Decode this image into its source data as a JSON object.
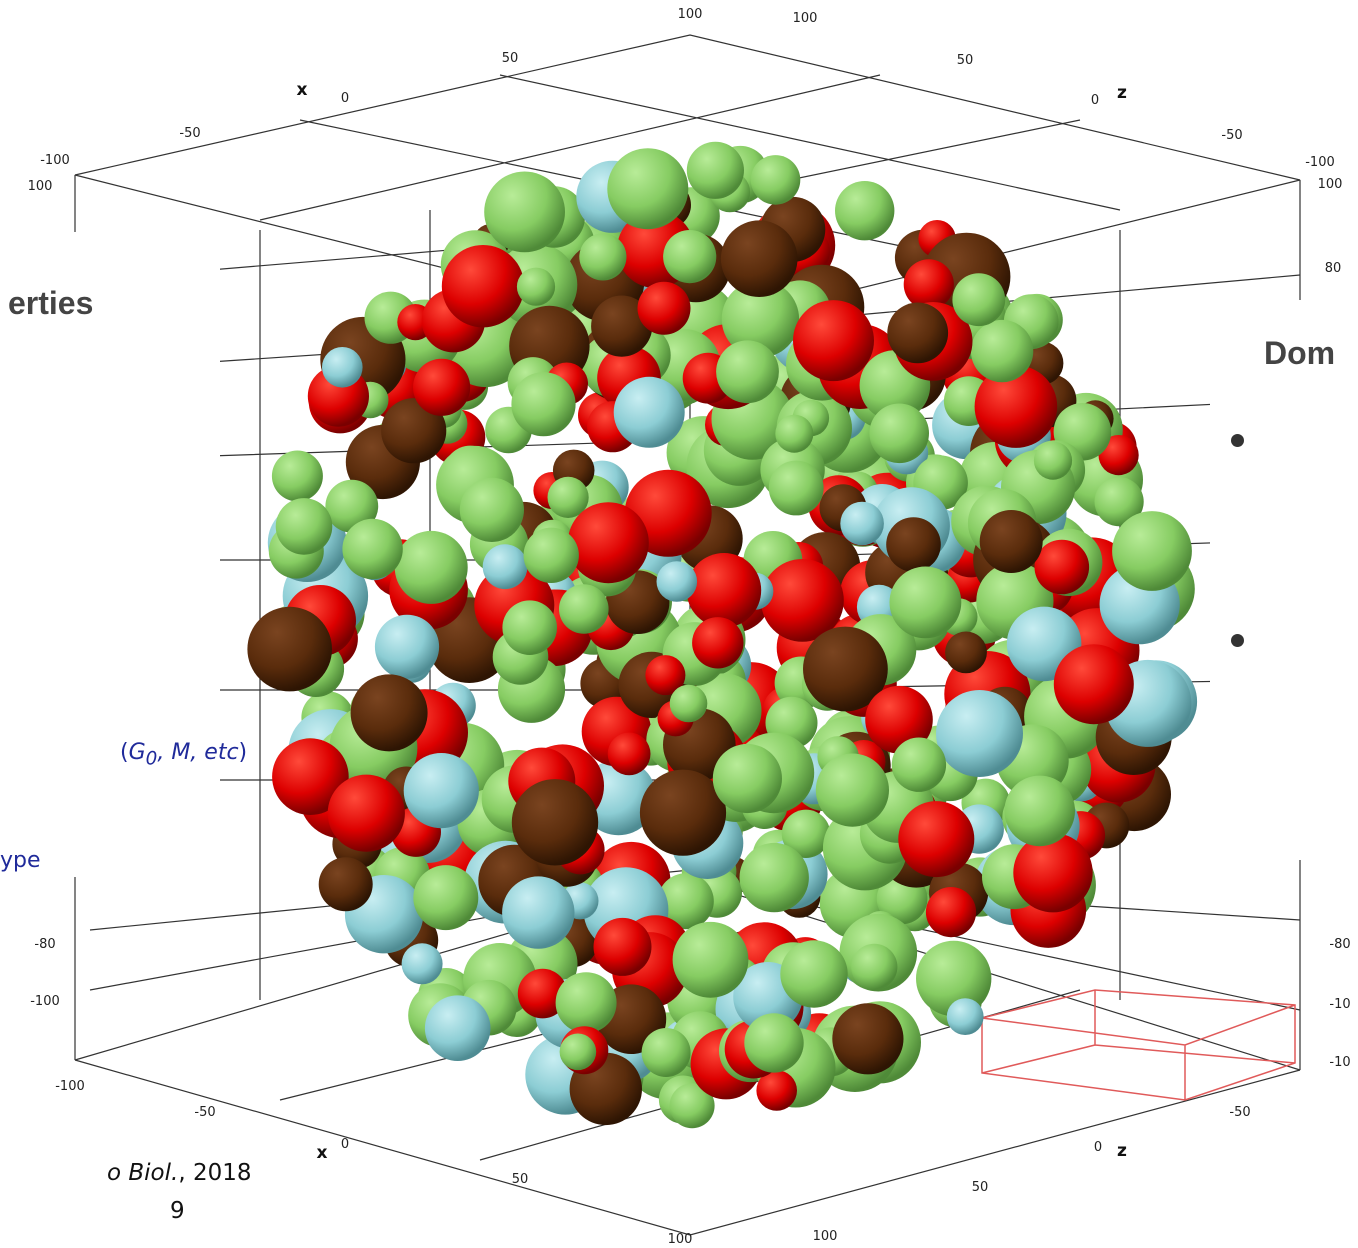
{
  "axis_names": {
    "top_x": "x",
    "top_z": "z",
    "bottom_x": "x",
    "bottom_z": "z"
  },
  "top_ticks": [
    "100",
    "100",
    "50",
    "50",
    "0",
    "0",
    "-50",
    "-50",
    "-100",
    "-100"
  ],
  "side_ticks": [
    "100",
    "100",
    "80",
    "-80",
    "-100",
    "-80",
    "-10",
    "-10"
  ],
  "bottom_ticks": [
    "-100",
    "-50",
    "0",
    "50",
    "100",
    "100",
    "50",
    "0",
    "-50"
  ],
  "left_panel": {
    "heading": "erties",
    "note_parts": [
      "(",
      "G",
      "0",
      ", M, etc",
      ")"
    ],
    "note2": "ype"
  },
  "right_panel": {
    "heading": "Dom"
  },
  "citation": {
    "journal": "o Biol.",
    "year": ", 2018",
    "line2": "9"
  }
}
